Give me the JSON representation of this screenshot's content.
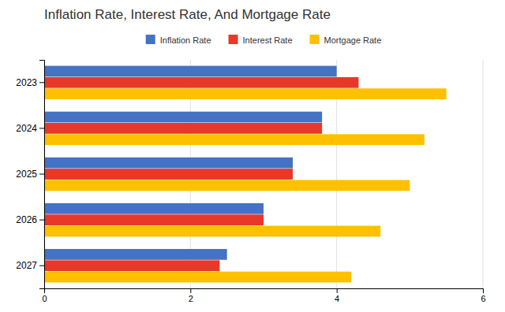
{
  "chart_data": {
    "type": "bar",
    "orientation": "horizontal",
    "title": "Inflation Rate, Interest Rate, And Mortgage Rate",
    "categories": [
      "2023",
      "2024",
      "2025",
      "2026",
      "2027"
    ],
    "series": [
      {
        "name": "Inflation Rate",
        "color": "#4472C4",
        "values": [
          4.0,
          3.8,
          3.4,
          3.0,
          2.5
        ]
      },
      {
        "name": "Interest Rate",
        "color": "#E8382A",
        "values": [
          4.3,
          3.8,
          3.4,
          3.0,
          2.4
        ]
      },
      {
        "name": "Mortgage Rate",
        "color": "#FFC000",
        "values": [
          5.5,
          5.2,
          5.0,
          4.6,
          4.2
        ]
      }
    ],
    "xlim": [
      0,
      6
    ],
    "xticks": [
      0,
      2,
      4,
      6
    ],
    "grid": true,
    "legend": "top"
  }
}
